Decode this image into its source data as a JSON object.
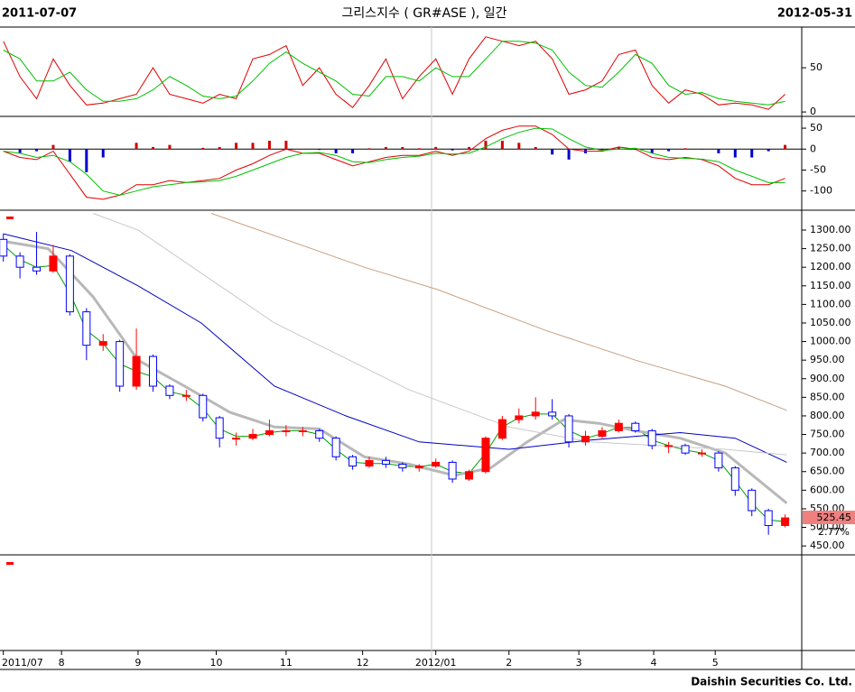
{
  "header": {
    "start_date": "2011-07-07",
    "title": "그리스지수 ( GR#ASE ), 일간",
    "end_date": "2012-05-31"
  },
  "footer": "Daishin Securities Co. Ltd.",
  "chart_data": [
    {
      "type": "line",
      "yticks": [
        0,
        50
      ],
      "ylim": [
        -5,
        95
      ],
      "series": [
        {
          "color": "#e00000",
          "values": [
            80,
            40,
            15,
            60,
            30,
            8,
            10,
            15,
            20,
            50,
            20,
            15,
            10,
            20,
            15,
            60,
            65,
            75,
            30,
            50,
            20,
            5,
            30,
            60,
            15,
            40,
            60,
            20,
            60,
            85,
            80,
            75,
            80,
            60,
            20,
            25,
            35,
            65,
            70,
            30,
            10,
            25,
            20,
            8,
            10,
            8,
            3,
            20
          ]
        },
        {
          "color": "#00c000",
          "values": [
            70,
            60,
            35,
            35,
            45,
            25,
            12,
            12,
            15,
            25,
            40,
            30,
            18,
            15,
            18,
            35,
            55,
            68,
            55,
            45,
            35,
            20,
            18,
            40,
            40,
            35,
            50,
            40,
            40,
            60,
            80,
            80,
            78,
            70,
            45,
            30,
            28,
            45,
            65,
            55,
            30,
            20,
            22,
            15,
            12,
            10,
            8,
            12
          ]
        }
      ]
    },
    {
      "type": "macd",
      "yticks": [
        50,
        0,
        -50,
        -100
      ],
      "ylim": [
        -146,
        76
      ],
      "histogram": {
        "up_color": "#d00000",
        "down_color": "#0000d0",
        "values": [
          0,
          -10,
          -5,
          10,
          -30,
          -55,
          -20,
          0,
          15,
          5,
          10,
          0,
          3,
          5,
          15,
          15,
          20,
          20,
          0,
          -2,
          -10,
          -10,
          2,
          5,
          5,
          2,
          5,
          -3,
          5,
          20,
          20,
          15,
          5,
          -13,
          -25,
          -10,
          -2,
          5,
          -2,
          -10,
          -5,
          2,
          -1,
          -10,
          -20,
          -20,
          -5,
          10
        ]
      },
      "series": [
        {
          "color": "#e00000",
          "values": [
            -5,
            -20,
            -25,
            -5,
            -60,
            -115,
            -120,
            -110,
            -85,
            -85,
            -75,
            -80,
            -75,
            -70,
            -50,
            -35,
            -15,
            0,
            -10,
            -10,
            -25,
            -40,
            -30,
            -20,
            -15,
            -15,
            -5,
            -15,
            -5,
            25,
            45,
            55,
            55,
            35,
            0,
            -5,
            -5,
            5,
            0,
            -20,
            -25,
            -20,
            -25,
            -40,
            -70,
            -85,
            -85,
            -70
          ]
        },
        {
          "color": "#00c000",
          "values": [
            -5,
            -10,
            -20,
            -15,
            -30,
            -60,
            -100,
            -110,
            -100,
            -90,
            -85,
            -80,
            -78,
            -75,
            -65,
            -50,
            -35,
            -20,
            -10,
            -8,
            -15,
            -30,
            -32,
            -25,
            -20,
            -17,
            -10,
            -12,
            -10,
            5,
            25,
            40,
            50,
            48,
            25,
            5,
            -3,
            0,
            2,
            -10,
            -20,
            -22,
            -24,
            -30,
            -50,
            -65,
            -80,
            -80
          ]
        }
      ]
    },
    {
      "type": "candlestick",
      "ylim": [
        426,
        1351
      ],
      "yticks": [
        {
          "value": 1300,
          "label": "1300.00"
        },
        {
          "value": 1250,
          "label": "1250.00"
        },
        {
          "value": 1200,
          "label": "1200.00"
        },
        {
          "value": 1150,
          "label": "1150.00"
        },
        {
          "value": 1100,
          "label": "1100.00"
        },
        {
          "value": 1050,
          "label": "1050.00"
        },
        {
          "value": 1000,
          "label": "1000.00"
        },
        {
          "value": 950,
          "label": "950.00"
        },
        {
          "value": 900,
          "label": "900.00"
        },
        {
          "value": 850,
          "label": "850.00"
        },
        {
          "value": 800,
          "label": "800.00"
        },
        {
          "value": 750,
          "label": "750.00"
        },
        {
          "value": 700,
          "label": "700.00"
        },
        {
          "value": 650,
          "label": "650.00"
        },
        {
          "value": 600,
          "label": "600.00"
        },
        {
          "value": 550,
          "label": "550.00"
        },
        {
          "value": 500,
          "label": "500.00"
        },
        {
          "value": 450,
          "label": "450.00"
        }
      ],
      "xlim": [
        -0.2,
        48
      ],
      "xticks": [
        {
          "value": 0,
          "label": "2011/07"
        },
        {
          "value": 3.5,
          "label": "8"
        },
        {
          "value": 8.1,
          "label": "9"
        },
        {
          "value": 12.8,
          "label": "10"
        },
        {
          "value": 17,
          "label": "11"
        },
        {
          "value": 21.6,
          "label": "12"
        },
        {
          "value": 26,
          "label": "2012/01"
        },
        {
          "value": 30.4,
          "label": "2"
        },
        {
          "value": 34.6,
          "label": "3"
        },
        {
          "value": 39.1,
          "label": "4"
        },
        {
          "value": 42.8,
          "label": "5"
        }
      ],
      "up_color": "#ff0000",
      "down_color": "#0000ff",
      "open": [
        1275,
        1230,
        1200,
        1190,
        1230,
        1080,
        990,
        1000,
        880,
        960,
        880,
        855,
        855,
        795,
        740,
        740,
        750,
        760,
        760,
        760,
        740,
        690,
        665,
        680,
        670,
        660,
        665,
        675,
        630,
        650,
        740,
        790,
        800,
        810,
        800,
        730,
        745,
        760,
        780,
        760,
        720,
        720,
        700,
        700,
        660,
        600,
        545,
        505
      ],
      "high": [
        1290,
        1240,
        1295,
        1260,
        1235,
        1090,
        1020,
        1005,
        1035,
        965,
        885,
        870,
        860,
        800,
        755,
        765,
        790,
        775,
        770,
        765,
        745,
        695,
        690,
        690,
        675,
        670,
        685,
        680,
        655,
        745,
        800,
        820,
        850,
        845,
        805,
        760,
        770,
        790,
        785,
        765,
        730,
        725,
        710,
        705,
        665,
        605,
        550,
        535
      ],
      "low": [
        1215,
        1170,
        1180,
        1185,
        1070,
        950,
        975,
        865,
        870,
        865,
        845,
        840,
        785,
        715,
        720,
        735,
        745,
        745,
        745,
        730,
        680,
        655,
        660,
        660,
        650,
        650,
        660,
        620,
        625,
        645,
        735,
        780,
        790,
        790,
        715,
        720,
        740,
        755,
        755,
        710,
        700,
        695,
        690,
        650,
        585,
        530,
        480,
        500
      ],
      "close": [
        1230,
        1200,
        1190,
        1230,
        1080,
        990,
        1000,
        880,
        960,
        880,
        855,
        855,
        795,
        740,
        740,
        750,
        760,
        760,
        760,
        740,
        690,
        665,
        680,
        670,
        660,
        665,
        675,
        630,
        650,
        740,
        790,
        800,
        810,
        800,
        730,
        745,
        760,
        780,
        760,
        720,
        720,
        700,
        700,
        660,
        600,
        545,
        505,
        525.45
      ],
      "last_value": 525.45,
      "change_label": "2.77%",
      "series": [
        {
          "color": "#00a000",
          "width": 1,
          "x": [
            0,
            1,
            2,
            3,
            4,
            5,
            6,
            7,
            8,
            9,
            10,
            11,
            12,
            13,
            14,
            15,
            16,
            17,
            18,
            19,
            20,
            21,
            22,
            23,
            24,
            25,
            26,
            27,
            28,
            29,
            30,
            31,
            32,
            33,
            34,
            35,
            36,
            37,
            38,
            39,
            40,
            41,
            42,
            43,
            44,
            45,
            46,
            47
          ],
          "values": [
            1260,
            1220,
            1200,
            1205,
            1130,
            1030,
            995,
            940,
            920,
            905,
            865,
            855,
            820,
            765,
            745,
            745,
            755,
            760,
            760,
            750,
            710,
            675,
            672,
            672,
            665,
            663,
            670,
            650,
            645,
            700,
            770,
            795,
            805,
            805,
            760,
            740,
            752,
            770,
            768,
            735,
            720,
            708,
            700,
            680,
            625,
            565,
            520,
            515
          ]
        },
        {
          "color": "#b8b8b8",
          "width": 3,
          "x": [
            0,
            2.7,
            5.4,
            8.1,
            10.9,
            13.6,
            16.3,
            19,
            21.7,
            24.4,
            27.1,
            29.3,
            31.5,
            33.7,
            35.8,
            38,
            40.7,
            43.4,
            47.1
          ],
          "values": [
            1270,
            1250,
            1120,
            950,
            880,
            810,
            770,
            765,
            690,
            670,
            640,
            660,
            730,
            790,
            780,
            760,
            740,
            700,
            565
          ]
        },
        {
          "color": "#0000c0",
          "width": 1,
          "x": [
            0,
            4.1,
            8.1,
            11.9,
            16.3,
            20.6,
            25,
            30.4,
            35.3,
            40.7,
            44,
            47.1
          ],
          "values": [
            1290,
            1245,
            1150,
            1050,
            880,
            800,
            730,
            710,
            735,
            755,
            740,
            675
          ]
        },
        {
          "color": "#c8c8c8",
          "width": 1,
          "x": [
            5.4,
            8.1,
            16.3,
            24.4,
            30.4,
            35.3,
            43.4,
            47.1
          ],
          "values": [
            1345,
            1300,
            1050,
            870,
            770,
            730,
            710,
            695
          ]
        },
        {
          "color": "#c8a080",
          "width": 1,
          "x": [
            12.5,
            21.7,
            26.1,
            32.6,
            38,
            43.4,
            47.1
          ],
          "values": [
            1345,
            1200,
            1140,
            1030,
            950,
            880,
            815
          ]
        }
      ]
    }
  ]
}
